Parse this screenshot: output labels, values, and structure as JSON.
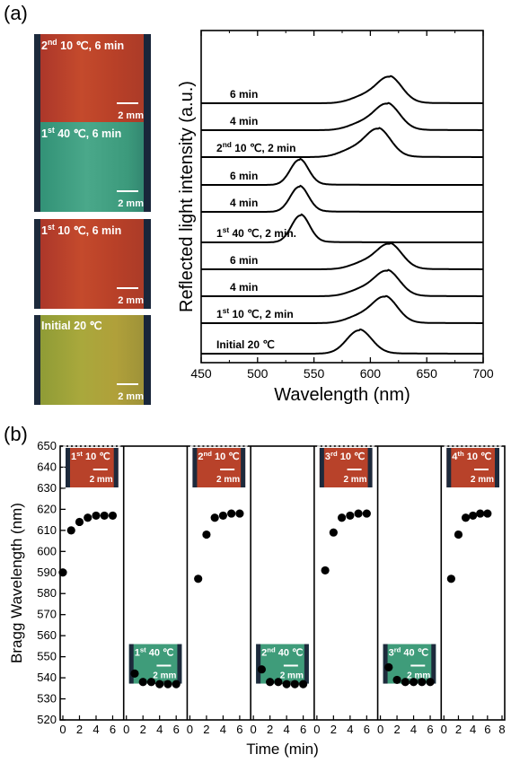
{
  "panel_a": {
    "label": "(a)",
    "photos": [
      {
        "caption": "2nd 10 ℃, 6 min",
        "scale": "2 mm",
        "tone": "red"
      },
      {
        "caption": "1st 40 ℃, 6 min",
        "scale": "2 mm",
        "tone": "green"
      },
      {
        "caption": "1st 10 ℃, 6 min",
        "scale": "2 mm",
        "tone": "red"
      },
      {
        "caption": "Initial 20 ℃",
        "scale": "2 mm",
        "tone": "yellow"
      }
    ]
  },
  "panel_b": {
    "label": "(b)"
  },
  "colors": {
    "red_photo": "#b8422a",
    "green_photo": "#3f9c7a",
    "yellow_photo": "#9aa23a"
  },
  "chart_data": [
    {
      "type": "line",
      "xlabel": "Wavelength (nm)",
      "ylabel": "Reflected light intensity (a.u.)",
      "xlim": [
        450,
        700
      ],
      "xticks": [
        "450",
        "500",
        "550",
        "600",
        "650",
        "700"
      ],
      "grid": false,
      "series": [
        {
          "name": "Initial 20 ℃",
          "peak_nm": 590
        },
        {
          "name": "1st 10 ℃, 2 min",
          "peak_nm": 613
        },
        {
          "name": "4 min",
          "peak_nm": 615
        },
        {
          "name": "6 min",
          "peak_nm": 617
        },
        {
          "name": "1st 40 ℃, 2 min.",
          "peak_nm": 538
        },
        {
          "name": "4 min",
          "peak_nm": 537
        },
        {
          "name": "6 min",
          "peak_nm": 537
        },
        {
          "name": "2nd 10 ℃, 2 min",
          "peak_nm": 607
        },
        {
          "name": "4 min",
          "peak_nm": 615
        },
        {
          "name": "6 min",
          "peak_nm": 617
        }
      ]
    },
    {
      "type": "scatter",
      "xlabel": "Time (min)",
      "ylabel": "Bragg Wavelength (nm)",
      "ylim": [
        520,
        650
      ],
      "yticks": [
        "520",
        "530",
        "540",
        "550",
        "560",
        "570",
        "580",
        "590",
        "600",
        "610",
        "620",
        "630",
        "640",
        "650"
      ],
      "segment_xticks": [
        "0",
        "2",
        "4",
        "6"
      ],
      "last_segment_xticks": [
        "0",
        "2",
        "4",
        "6",
        "8"
      ],
      "segments": [
        {
          "label": "1st 10 ℃",
          "phase": "cold",
          "x": [
            0,
            1,
            2,
            3,
            4,
            5,
            6
          ],
          "y": [
            590,
            610,
            614,
            616,
            617,
            617,
            617
          ]
        },
        {
          "label": "1st 40 ℃",
          "phase": "hot",
          "x": [
            1,
            2,
            3,
            4,
            5,
            6
          ],
          "y": [
            542,
            538,
            538,
            537,
            537,
            537
          ]
        },
        {
          "label": "2nd 10 ℃",
          "phase": "cold",
          "x": [
            1,
            2,
            3,
            4,
            5,
            6
          ],
          "y": [
            587,
            608,
            616,
            617,
            618,
            618
          ]
        },
        {
          "label": "2nd 40 ℃",
          "phase": "hot",
          "x": [
            1,
            2,
            3,
            4,
            5,
            6
          ],
          "y": [
            544,
            538,
            538,
            537,
            537,
            537
          ]
        },
        {
          "label": "3rd 10 ℃",
          "phase": "cold",
          "x": [
            1,
            2,
            3,
            4,
            5,
            6
          ],
          "y": [
            591,
            609,
            616,
            617,
            618,
            618
          ]
        },
        {
          "label": "3rd 40 ℃",
          "phase": "hot",
          "x": [
            1,
            2,
            3,
            4,
            5,
            6
          ],
          "y": [
            545,
            539,
            538,
            538,
            538,
            538
          ]
        },
        {
          "label": "4th 10 ℃",
          "phase": "cold",
          "x": [
            1,
            2,
            3,
            4,
            5,
            6
          ],
          "y": [
            587,
            608,
            616,
            617,
            618,
            618
          ]
        }
      ],
      "inset_scale": "2 mm"
    }
  ]
}
